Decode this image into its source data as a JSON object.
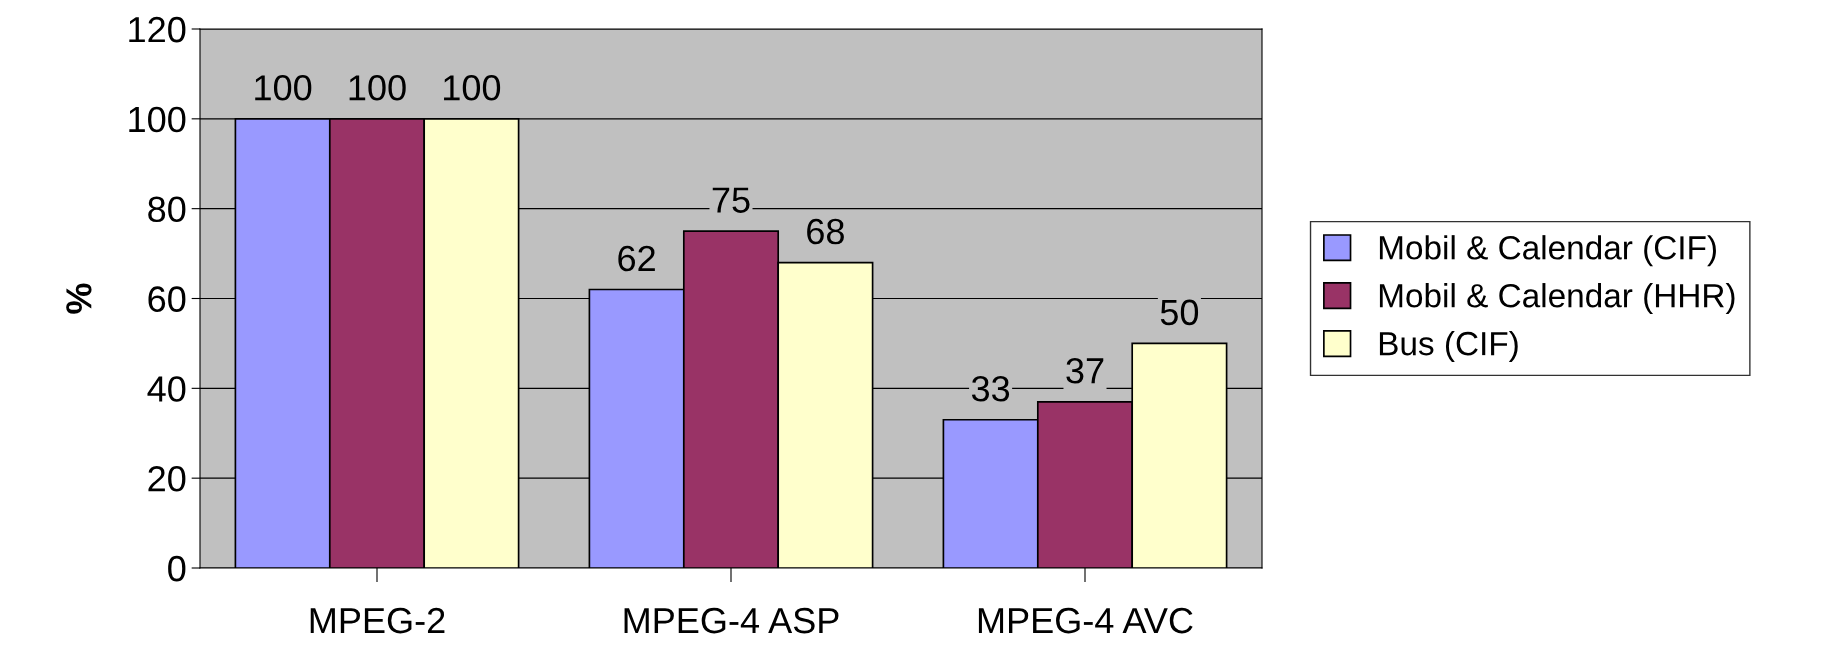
{
  "chart_data": {
    "type": "bar",
    "ylabel": "%",
    "categories": [
      "MPEG-2",
      "MPEG-4 ASP",
      "MPEG-4 AVC"
    ],
    "series": [
      {
        "name": "Mobil & Calendar (CIF)",
        "color": "#9999ff",
        "values": [
          100,
          62,
          33
        ]
      },
      {
        "name": "Mobil & Calendar (HHR)",
        "color": "#993366",
        "values": [
          100,
          75,
          37
        ]
      },
      {
        "name": "Bus (CIF)",
        "color": "#ffffcc",
        "values": [
          100,
          68,
          50
        ]
      }
    ],
    "ylim": [
      0,
      120
    ],
    "yticks": [
      0,
      20,
      40,
      60,
      80,
      100,
      120
    ],
    "grid": "y",
    "legend": "right",
    "data_labels": true
  }
}
